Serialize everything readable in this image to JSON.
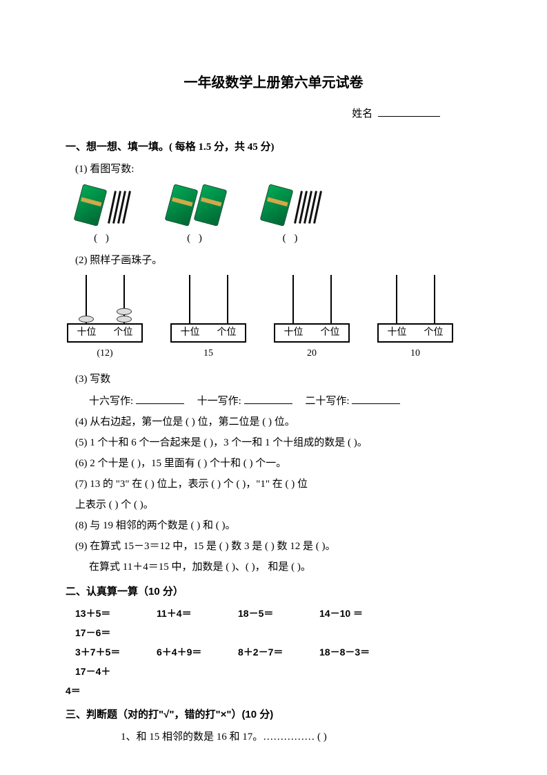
{
  "title": "一年级数学上册第六单元试卷",
  "name_label": "姓名",
  "section1": {
    "head": "一、想一想、填一填。(  每格 1.5 分，共 45 分)",
    "q1_label": "(1) 看图写数:",
    "pic_paren": "(        )",
    "pics": [
      {
        "bundles": 1,
        "sticks": 4
      },
      {
        "bundles": 2,
        "sticks": 0
      },
      {
        "bundles": 1,
        "sticks": 5
      }
    ],
    "q2_label": "(2) 照样子画珠子。",
    "abacus_labels": {
      "tens": "十位",
      "ones": "个位"
    },
    "abacus": [
      {
        "num": "(12)",
        "tens_beads": 1,
        "ones_beads": 2
      },
      {
        "num": "15",
        "tens_beads": 0,
        "ones_beads": 0
      },
      {
        "num": "20",
        "tens_beads": 0,
        "ones_beads": 0
      },
      {
        "num": "10",
        "tens_beads": 0,
        "ones_beads": 0
      }
    ],
    "q3_label": "(3) 写数",
    "q3_line": {
      "a": "十六写作:",
      "b": "十一写作:",
      "c": "二十写作:"
    },
    "q4": "(4) 从右边起，第一位是 (      ) 位，第二位是 (      ) 位。",
    "q5": "(5) 1 个十和 6 个一合起来是 (      )，3 个一和 1 个十组成的数是 (      )。",
    "q6": "(6) 2 个十是 (      )，15 里面有 (      ) 个十和 (      ) 个一。",
    "q7a": "(7) 13 的 \"3\" 在 (      ) 位上，表示 (      ) 个 (      )，\"1\" 在 (      ) 位",
    "q7b": "上表示 (      ) 个 (      )。",
    "q8": "(8) 与 19 相邻的两个数是 (      ) 和 (      )。",
    "q9a": "(9) 在算式 15－3＝12 中，15 是 (      ) 数      3 是 (      ) 数      12 是 (      )。",
    "q9b": "在算式 11＋4＝15 中，加数是 (        )、(        )，      和是 (        )。"
  },
  "section2": {
    "head": "二、认真算一算（10 分）",
    "row1": [
      "13＋5＝",
      "11＋4＝",
      "18－5＝",
      "14－10 ＝",
      "17－6＝"
    ],
    "row2": [
      "3＋7＋5＝",
      "6＋4＋9＝",
      "8＋2－7＝",
      "18－8－3＝",
      "17－4＋"
    ],
    "tail": "4＝"
  },
  "section3": {
    "head": "三、判断题（对的打\"√\"，错的打\"×\"）(10 分)",
    "q1": "1、和 15 相邻的数是 16 和 17。……………    (        )"
  }
}
